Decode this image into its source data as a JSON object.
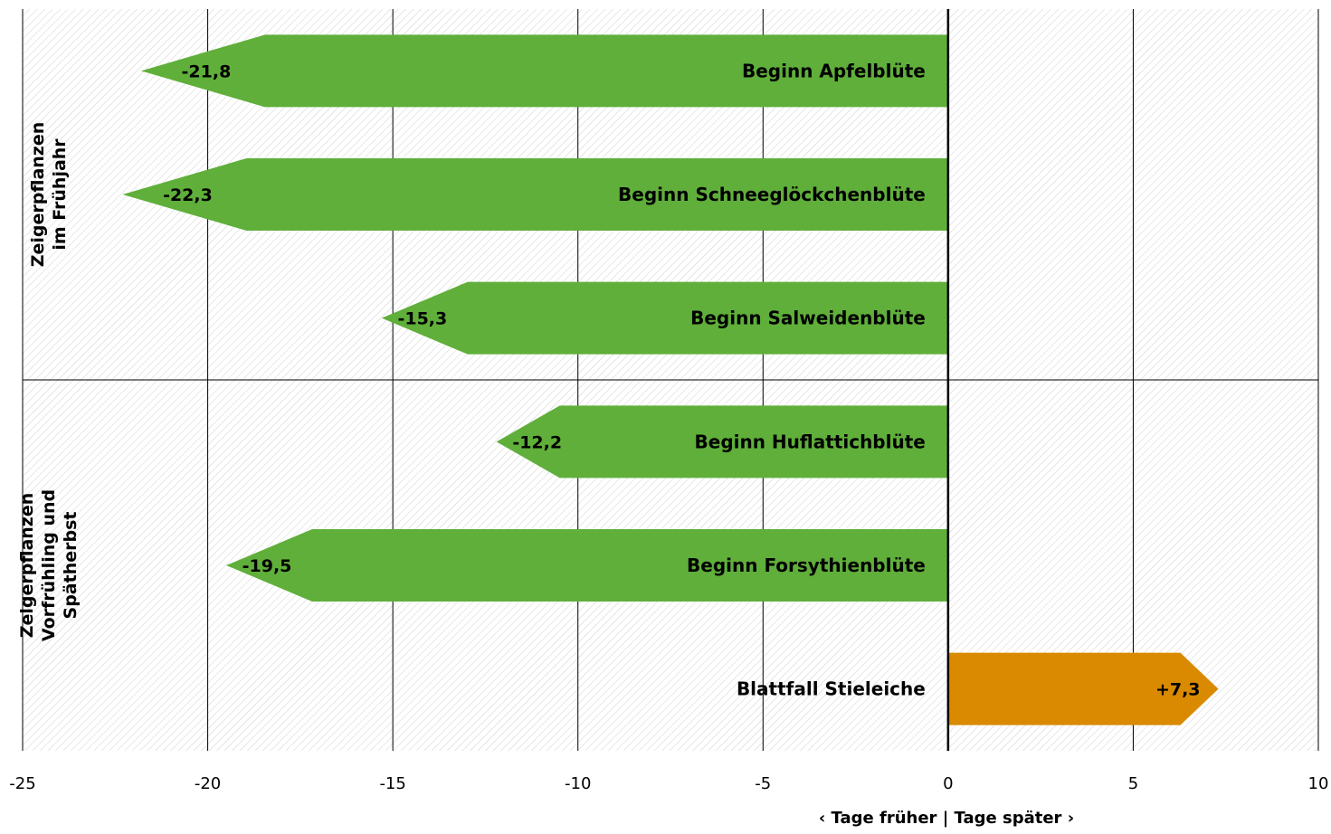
{
  "chart_data": {
    "type": "bar",
    "orientation": "horizontal",
    "xlabel": "‹ Tage früher | Tage später ›",
    "xlim": [
      -25,
      10
    ],
    "xticks": [
      "-25",
      "-20",
      "-15",
      "-10",
      "-5",
      "0",
      "5",
      "10"
    ],
    "grid": true,
    "groups": [
      {
        "label_lines": [
          "Zeigerpflanzen",
          "im Frühjahr"
        ]
      },
      {
        "label_lines": [
          "Zeigerpflanzen",
          "Vorfrühling und",
          "Spätherbst"
        ]
      }
    ],
    "categories": [
      "Beginn Apfelblüte",
      "Beginn Schneeglöckchenblüte",
      "Beginn Salweidenblüte",
      "Beginn Huflattichblüte",
      "Beginn Forsythienblüte",
      "Blattfall Stieleiche"
    ],
    "values": [
      -21.8,
      -22.3,
      -15.3,
      -12.2,
      -19.5,
      7.3
    ],
    "value_labels": [
      "-21,8",
      "-22,3",
      "-15,3",
      "-12,2",
      "-19,5",
      "+7,3"
    ],
    "colors": {
      "negative": "#5faf3a",
      "positive": "#d98a00",
      "background_hatch": "#c8c8c8"
    }
  }
}
